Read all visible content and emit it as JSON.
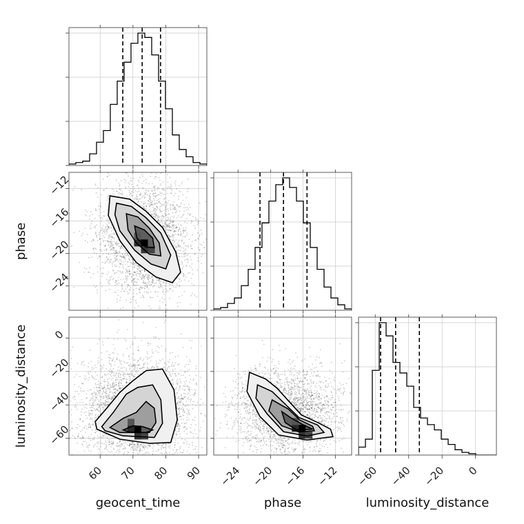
{
  "chart_data": {
    "type": "corner",
    "parameters": [
      "geocent_time",
      "phase",
      "luminosity_distance"
    ],
    "axes": {
      "geocent_time": {
        "label": "geocent_time",
        "range": [
          50.5,
          92.5
        ],
        "ticks": [
          60,
          70,
          80,
          90
        ],
        "tick_labels": [
          "60",
          "70",
          "80",
          "90"
        ]
      },
      "phase": {
        "label": "phase",
        "range": [
          -27.0,
          -10.0
        ],
        "ticks": [
          -24,
          -20,
          -16,
          -12
        ],
        "tick_labels": [
          "−24",
          "−20",
          "−16",
          "−12"
        ]
      },
      "luminosity_distance": {
        "label": "luminosity_distance",
        "range": [
          -70.0,
          12.5
        ],
        "ticks": [
          -60,
          -40,
          -20,
          0
        ],
        "tick_labels": [
          "−60",
          "−40",
          "−20",
          "0"
        ]
      }
    },
    "histograms": [
      {
        "parameter": "geocent_time",
        "bin_edges": [
          50.5,
          52.6,
          54.7,
          56.8,
          58.9,
          61.0,
          63.1,
          65.2,
          67.3,
          69.4,
          71.5,
          73.6,
          75.7,
          77.8,
          79.9,
          82.0,
          84.1,
          86.2,
          88.3,
          90.4,
          92.5
        ],
        "counts": [
          1,
          2,
          3,
          8,
          16,
          24,
          42,
          58,
          71,
          84,
          91,
          88,
          76,
          58,
          39,
          21,
          11,
          6,
          2,
          1
        ],
        "quantiles": [
          66.9,
          72.8,
          78.4
        ]
      },
      {
        "parameter": "phase",
        "bin_edges": [
          -27.0,
          -26.15,
          -25.3,
          -24.45,
          -23.6,
          -22.75,
          -21.9,
          -21.05,
          -20.2,
          -19.35,
          -18.5,
          -17.65,
          -16.8,
          -15.95,
          -15.1,
          -14.25,
          -13.4,
          -12.55,
          -11.7,
          -10.85,
          -10.0
        ],
        "counts": [
          1,
          2,
          5,
          9,
          18,
          30,
          46,
          64,
          80,
          92,
          97,
          90,
          80,
          64,
          46,
          30,
          17,
          9,
          4,
          1
        ],
        "quantiles": [
          -21.3,
          -18.4,
          -15.5
        ]
      },
      {
        "parameter": "luminosity_distance",
        "bin_edges": [
          -70.0,
          -65.875,
          -61.75,
          -57.625,
          -53.5,
          -49.375,
          -45.25,
          -41.125,
          -37.0,
          -32.875,
          -28.75,
          -24.625,
          -20.5,
          -16.375,
          -12.25,
          -8.125,
          -4.0,
          0.125,
          4.25,
          8.375,
          12.5
        ],
        "counts": [
          6,
          12,
          64,
          100,
          90,
          70,
          62,
          52,
          36,
          28,
          23,
          19,
          12,
          8,
          4,
          2,
          1,
          0,
          0,
          0
        ],
        "quantiles": [
          -56.8,
          -47.8,
          -33.6
        ]
      }
    ],
    "pairs": [
      {
        "x": "geocent_time",
        "y": "phase",
        "peak": [
          73.5,
          -18.7
        ],
        "contours": [
          [
            [
              63,
              -12.9
            ],
            [
              69,
              -13.3
            ],
            [
              74,
              -14.8
            ],
            [
              79,
              -16.8
            ],
            [
              83,
              -19.8
            ],
            [
              84.5,
              -22.3
            ],
            [
              82,
              -23.6
            ],
            [
              77,
              -22.9
            ],
            [
              71,
              -21.1
            ],
            [
              66,
              -18.4
            ],
            [
              62.5,
              -15.3
            ]
          ],
          [
            [
              65,
              -13.8
            ],
            [
              69.5,
              -14.2
            ],
            [
              74,
              -15.6
            ],
            [
              78.5,
              -17.5
            ],
            [
              81.5,
              -20.2
            ],
            [
              80,
              -21.9
            ],
            [
              75.5,
              -21.3
            ],
            [
              70.5,
              -19.6
            ],
            [
              66,
              -17.2
            ],
            [
              64.5,
              -15.2
            ]
          ],
          [
            [
              68,
              -15.1
            ],
            [
              71.5,
              -15.5
            ],
            [
              75,
              -16.9
            ],
            [
              78,
              -18.7
            ],
            [
              78.5,
              -20.3
            ],
            [
              75,
              -20.1
            ],
            [
              71,
              -18.7
            ],
            [
              68.5,
              -17.1
            ]
          ],
          [
            [
              70.5,
              -16.6
            ],
            [
              73.5,
              -17.1
            ],
            [
              76,
              -18.1
            ],
            [
              76.5,
              -19.3
            ],
            [
              73.8,
              -19.2
            ],
            [
              71.2,
              -18.1
            ]
          ]
        ]
      },
      {
        "x": "geocent_time",
        "y": "luminosity_distance",
        "peak": [
          71.5,
          -54.5
        ],
        "contours": [
          [
            [
              58.5,
              -50
            ],
            [
              62,
              -42
            ],
            [
              66,
              -32.5
            ],
            [
              70,
              -25.5
            ],
            [
              74,
              -19.5
            ],
            [
              79,
              -18.5
            ],
            [
              82.5,
              -31
            ],
            [
              83.5,
              -49
            ],
            [
              81.5,
              -62.5
            ],
            [
              75,
              -63
            ],
            [
              66,
              -60.5
            ],
            [
              59,
              -54.5
            ]
          ],
          [
            [
              60.5,
              -53
            ],
            [
              64,
              -44.5
            ],
            [
              68,
              -33.5
            ],
            [
              71.5,
              -29.5
            ],
            [
              76,
              -28
            ],
            [
              78.5,
              -37
            ],
            [
              79,
              -51
            ],
            [
              76.5,
              -59.5
            ],
            [
              67,
              -58.5
            ],
            [
              61.5,
              -55.5
            ]
          ],
          [
            [
              63,
              -53.5
            ],
            [
              67,
              -48
            ],
            [
              71,
              -44.5
            ],
            [
              74,
              -38
            ],
            [
              76.5,
              -42
            ],
            [
              77,
              -50.5
            ],
            [
              75,
              -56.5
            ],
            [
              66,
              -56.5
            ]
          ],
          [
            [
              67,
              -55
            ],
            [
              70,
              -52.5
            ],
            [
              73,
              -53
            ],
            [
              76,
              -55
            ],
            [
              74,
              -56.5
            ],
            [
              69,
              -56.3
            ]
          ]
        ]
      },
      {
        "x": "phase",
        "y": "luminosity_distance",
        "peak": [
          -16.1,
          -54.0
        ],
        "contours": [
          [
            [
              -22.6,
              -20.5
            ],
            [
              -20.6,
              -24.5
            ],
            [
              -19.2,
              -30
            ],
            [
              -17.8,
              -37.5
            ],
            [
              -16.2,
              -46
            ],
            [
              -14.2,
              -50.5
            ],
            [
              -12.6,
              -54.5
            ],
            [
              -12.3,
              -59
            ],
            [
              -15.5,
              -61
            ],
            [
              -19,
              -58
            ],
            [
              -21.3,
              -47
            ],
            [
              -22.9,
              -32
            ]
          ],
          [
            [
              -21.6,
              -28
            ],
            [
              -19.8,
              -32
            ],
            [
              -18.2,
              -39.5
            ],
            [
              -16.5,
              -47.5
            ],
            [
              -14.2,
              -52
            ],
            [
              -13.4,
              -56.5
            ],
            [
              -15.5,
              -58.6
            ],
            [
              -18.4,
              -56
            ],
            [
              -20.4,
              -45.5
            ],
            [
              -21.8,
              -36
            ]
          ],
          [
            [
              -19.8,
              -37
            ],
            [
              -17.8,
              -42.5
            ],
            [
              -16.4,
              -49
            ],
            [
              -14.8,
              -52.8
            ],
            [
              -14.6,
              -55.5
            ],
            [
              -16.5,
              -56.2
            ],
            [
              -18.6,
              -52.5
            ],
            [
              -20.2,
              -43.5
            ]
          ],
          [
            [
              -18.6,
              -44
            ],
            [
              -17.4,
              -48
            ],
            [
              -16.0,
              -51.8
            ],
            [
              -14.8,
              -54.5
            ],
            [
              -16.8,
              -55
            ],
            [
              -18.2,
              -50.5
            ]
          ]
        ]
      }
    ]
  }
}
